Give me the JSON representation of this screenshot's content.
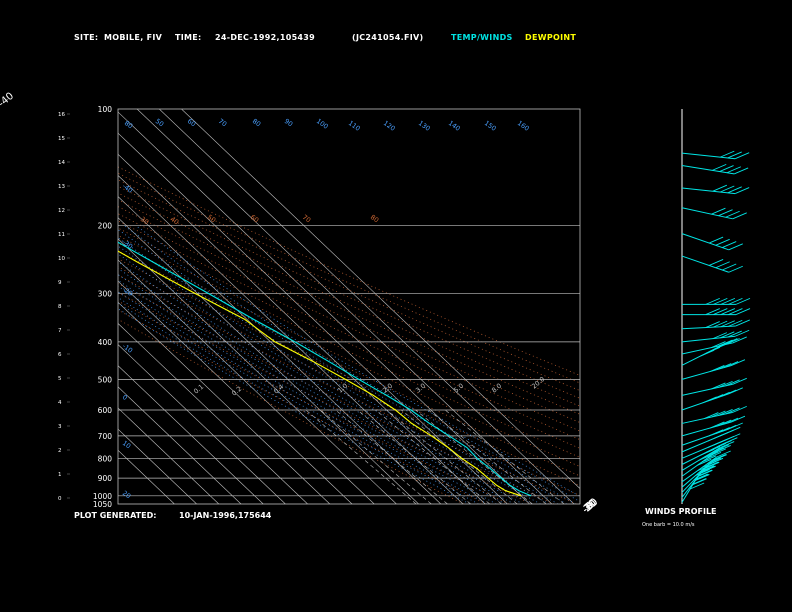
{
  "header": {
    "site_label": "SITE:",
    "site_value": "MOBILE, FIV",
    "time_label": "TIME:",
    "time_value": "24-DEC-1992,105439",
    "file_value": "(JC241054.FIV)",
    "temp_winds_label": "TEMP/WINDS",
    "dewpoint_label": "DEWPOINT"
  },
  "footer": {
    "plot_generated_label": "PLOT GENERATED:",
    "plot_generated_value": "10-JAN-1996,175644",
    "winds_profile_label": "WINDS PROFILE",
    "barb_note": "One barb = 10.0 m/s"
  },
  "colors": {
    "temp_winds": "#00e5e5",
    "dewpoint": "#ffff00",
    "isotherm": "#c0c0c0",
    "isobar": "#c0c0c0",
    "dry_adiabat": "#cc6633",
    "moist_adiabat": "#4aa0ff",
    "mixing_ratio": "#c0c0c0",
    "background": "#000000"
  },
  "chart_data": {
    "type": "line",
    "subtype": "skew-T log-P sounding",
    "x_axis": "temperature (°C)",
    "y_axis": "pressure (hPa)",
    "ylim": [
      1050,
      100
    ],
    "pressure_tick_labels": [
      "100",
      "200",
      "300",
      "400",
      "500",
      "600",
      "700",
      "800",
      "900",
      "1000",
      "1050"
    ],
    "pressure_tick_values": [
      100,
      200,
      300,
      400,
      500,
      600,
      700,
      800,
      900,
      1000,
      1050
    ],
    "height_tick_labels": [
      "16",
      "15",
      "14",
      "13",
      "12",
      "11",
      "10",
      "9",
      "8",
      "7",
      "6",
      "5",
      "4",
      "3",
      "2",
      "1",
      "0"
    ],
    "isotherm_top_labels": [
      "-110",
      "-100",
      "-90",
      "-80",
      "-70",
      "-60",
      "-50",
      "-40"
    ],
    "isotherm_top_values": [
      -110,
      -100,
      -90,
      -80,
      -70,
      -60,
      -50,
      -40
    ],
    "isotherm_right_labels": [
      "-30",
      "-20",
      "-10",
      "0",
      "10",
      "20",
      "30"
    ],
    "isotherm_right_values": [
      -30,
      -20,
      -10,
      0,
      10,
      20,
      30
    ],
    "dry_adiabat_labels": [
      "80",
      "50",
      "60",
      "70",
      "80",
      "90",
      "100",
      "110",
      "120",
      "130",
      "140",
      "150",
      "160"
    ],
    "moist_adiabat_labels": [
      "-40",
      "-30",
      "-20",
      "-10",
      "0",
      "10",
      "20",
      "30",
      "40",
      "50",
      "60",
      "70",
      "80"
    ],
    "mixing_ratio_labels": [
      "0.1",
      "0.2",
      "0.4",
      "1.0",
      "2.0",
      "3.0",
      "5.0",
      "8.0",
      "20.0"
    ],
    "series": [
      {
        "name": "TEMP/WINDS",
        "points": [
          {
            "p": 1000,
            "t": 14.5
          },
          {
            "p": 970,
            "t": 11.5
          },
          {
            "p": 940,
            "t": 10
          },
          {
            "p": 900,
            "t": 9.5
          },
          {
            "p": 850,
            "t": 9
          },
          {
            "p": 800,
            "t": 8
          },
          {
            "p": 750,
            "t": 8.5
          },
          {
            "p": 700,
            "t": 6
          },
          {
            "p": 650,
            "t": 3
          },
          {
            "p": 600,
            "t": 1
          },
          {
            "p": 550,
            "t": -3
          },
          {
            "p": 500,
            "t": -8
          },
          {
            "p": 450,
            "t": -13
          },
          {
            "p": 400,
            "t": -19
          },
          {
            "p": 350,
            "t": -27
          },
          {
            "p": 300,
            "t": -35
          },
          {
            "p": 250,
            "t": -45
          },
          {
            "p": 200,
            "t": -57
          },
          {
            "p": 175,
            "t": -62
          },
          {
            "p": 150,
            "t": -68
          },
          {
            "p": 125,
            "t": -70
          },
          {
            "p": 110,
            "t": -74
          },
          {
            "p": 100,
            "t": -76
          }
        ]
      },
      {
        "name": "DEWPOINT",
        "points": [
          {
            "p": 1000,
            "t": 10
          },
          {
            "p": 970,
            "t": 5.5
          },
          {
            "p": 940,
            "t": 4
          },
          {
            "p": 900,
            "t": 3.5
          },
          {
            "p": 850,
            "t": 3
          },
          {
            "p": 800,
            "t": 1
          },
          {
            "p": 750,
            "t": 0
          },
          {
            "p": 700,
            "t": -2
          },
          {
            "p": 650,
            "t": -5
          },
          {
            "p": 600,
            "t": -6
          },
          {
            "p": 550,
            "t": -9
          },
          {
            "p": 500,
            "t": -14
          },
          {
            "p": 450,
            "t": -20
          },
          {
            "p": 400,
            "t": -28
          },
          {
            "p": 350,
            "t": -31
          },
          {
            "p": 300,
            "t": -41
          },
          {
            "p": 250,
            "t": -52
          },
          {
            "p": 200,
            "t": -64
          },
          {
            "p": 175,
            "t": -70
          },
          {
            "p": 150,
            "t": -76
          },
          {
            "p": 125,
            "t": -78
          },
          {
            "p": 110,
            "t": -80
          },
          {
            "p": 100,
            "t": -80
          }
        ]
      }
    ],
    "winds": [
      {
        "p": 1040,
        "speed_ms": 45,
        "dir_deg": 200
      },
      {
        "p": 1010,
        "speed_ms": 45,
        "dir_deg": 205
      },
      {
        "p": 980,
        "speed_ms": 45,
        "dir_deg": 210
      },
      {
        "p": 950,
        "speed_ms": 50,
        "dir_deg": 215
      },
      {
        "p": 920,
        "speed_ms": 50,
        "dir_deg": 220
      },
      {
        "p": 890,
        "speed_ms": 50,
        "dir_deg": 220
      },
      {
        "p": 860,
        "speed_ms": 45,
        "dir_deg": 225
      },
      {
        "p": 830,
        "speed_ms": 45,
        "dir_deg": 230
      },
      {
        "p": 800,
        "speed_ms": 40,
        "dir_deg": 235
      },
      {
        "p": 770,
        "speed_ms": 35,
        "dir_deg": 235
      },
      {
        "p": 740,
        "speed_ms": 40,
        "dir_deg": 240
      },
      {
        "p": 700,
        "speed_ms": 40,
        "dir_deg": 245
      },
      {
        "p": 650,
        "speed_ms": 45,
        "dir_deg": 250
      },
      {
        "p": 600,
        "speed_ms": 45,
        "dir_deg": 240
      },
      {
        "p": 550,
        "speed_ms": 40,
        "dir_deg": 250
      },
      {
        "p": 500,
        "speed_ms": 40,
        "dir_deg": 245
      },
      {
        "p": 460,
        "speed_ms": 45,
        "dir_deg": 230
      },
      {
        "p": 430,
        "speed_ms": 40,
        "dir_deg": 250
      },
      {
        "p": 400,
        "speed_ms": 40,
        "dir_deg": 260
      },
      {
        "p": 370,
        "speed_ms": 50,
        "dir_deg": 265
      },
      {
        "p": 340,
        "speed_ms": 50,
        "dir_deg": 270
      },
      {
        "p": 320,
        "speed_ms": 45,
        "dir_deg": 270
      },
      {
        "p": 240,
        "speed_ms": 35,
        "dir_deg": 300
      },
      {
        "p": 210,
        "speed_ms": 35,
        "dir_deg": 300
      },
      {
        "p": 180,
        "speed_ms": 40,
        "dir_deg": 290
      },
      {
        "p": 160,
        "speed_ms": 35,
        "dir_deg": 280
      },
      {
        "p": 140,
        "speed_ms": 40,
        "dir_deg": 285
      },
      {
        "p": 130,
        "speed_ms": 30,
        "dir_deg": 280
      }
    ]
  }
}
